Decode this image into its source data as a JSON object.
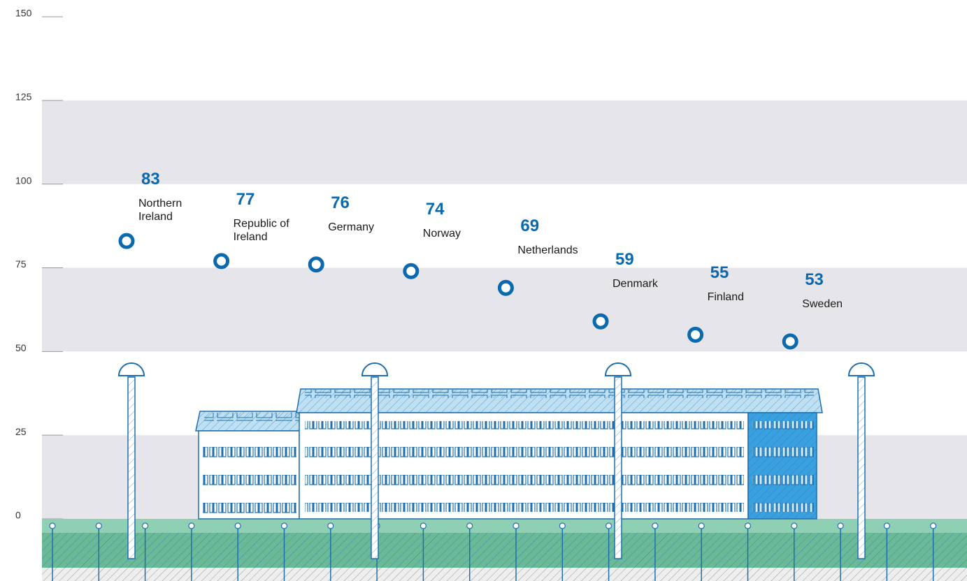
{
  "chart_data": {
    "type": "dot",
    "categories": [
      "Northern Ireland",
      "Republic of Ireland",
      "Germany",
      "Norway",
      "Netherlands",
      "Denmark",
      "Finland",
      "Sweden"
    ],
    "values": [
      83,
      77,
      76,
      74,
      69,
      59,
      55,
      53
    ],
    "color": "#0a6aad",
    "ylim": [
      0,
      150
    ],
    "yticks": [
      0,
      25,
      50,
      75,
      100,
      125,
      150
    ],
    "grid": true
  }
}
